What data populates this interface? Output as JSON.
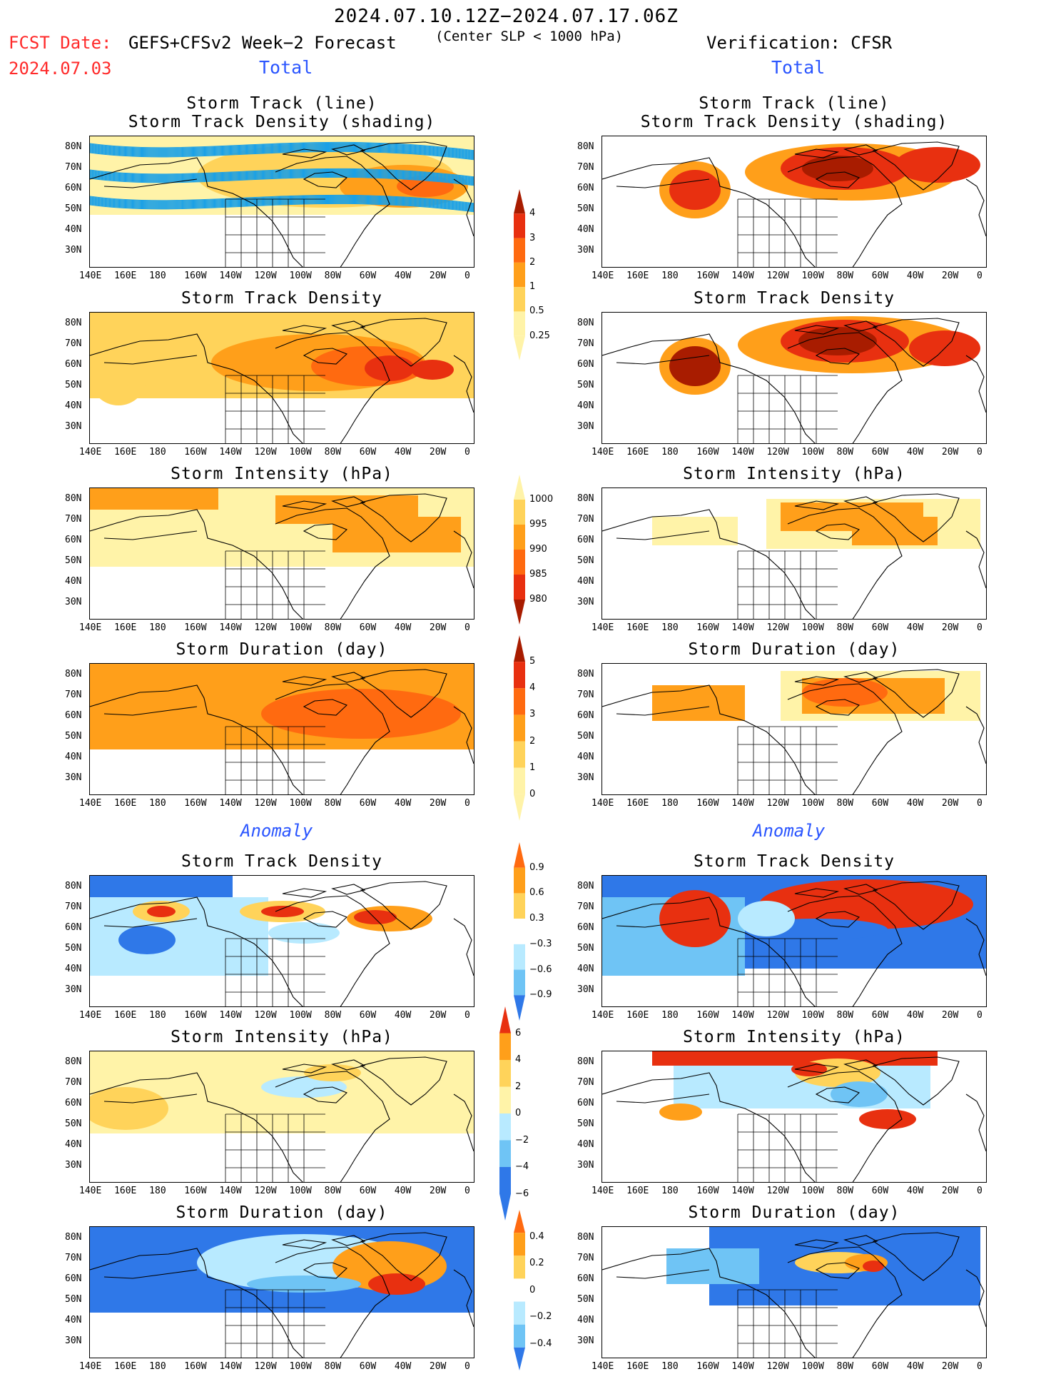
{
  "header": {
    "period": "2024.07.10.12Z−2024.07.17.06Z",
    "fcst_label": "FCST Date:",
    "fcst_date": "2024.07.03",
    "model": "GEFS+CFSv2 Week−2 Forecast",
    "criterion": "(Center SLP < 1000 hPa)",
    "verification": "Verification: CFSR"
  },
  "sections": {
    "total": "Total",
    "anomaly": "Anomaly"
  },
  "panel_titles": {
    "track_line": "Storm Track (line)",
    "track_shading": "Storm Track Density (shading)",
    "density": "Storm Track Density",
    "intensity": "Storm Intensity (hPa)",
    "duration": "Storm Duration (day)"
  },
  "axes": {
    "lat_labels": [
      "80N",
      "70N",
      "60N",
      "50N",
      "40N",
      "30N"
    ],
    "lon_labels": [
      "140E",
      "160E",
      "180",
      "160W",
      "140W",
      "120W",
      "100W",
      "80W",
      "60W",
      "40W",
      "20W",
      "0"
    ]
  },
  "colorbars": {
    "density_total": [
      "4",
      "3",
      "2",
      "1",
      "0.5",
      "0.25"
    ],
    "intensity_total": [
      "1000",
      "995",
      "990",
      "985",
      "980"
    ],
    "duration_total": [
      "5",
      "4",
      "3",
      "2",
      "1",
      "0"
    ],
    "density_anom": [
      "0.9",
      "0.6",
      "0.3",
      "−0.3",
      "−0.6",
      "−0.9"
    ],
    "intensity_anom": [
      "6",
      "4",
      "2",
      "0",
      "−2",
      "−4",
      "−6"
    ],
    "duration_anom": [
      "0.4",
      "0.2",
      "0",
      "−0.2",
      "−0.4"
    ]
  },
  "colors": {
    "lightyellow": "#fff3a8",
    "yellow": "#ffd35a",
    "orange": "#ff9f1a",
    "darkorange": "#ff6a10",
    "red": "#e83010",
    "darkred": "#a81c00",
    "lightblue": "#b8eaff",
    "skyblue": "#6fc4f5",
    "blue": "#2f78e8",
    "track_line": "#1aa0e6"
  }
}
